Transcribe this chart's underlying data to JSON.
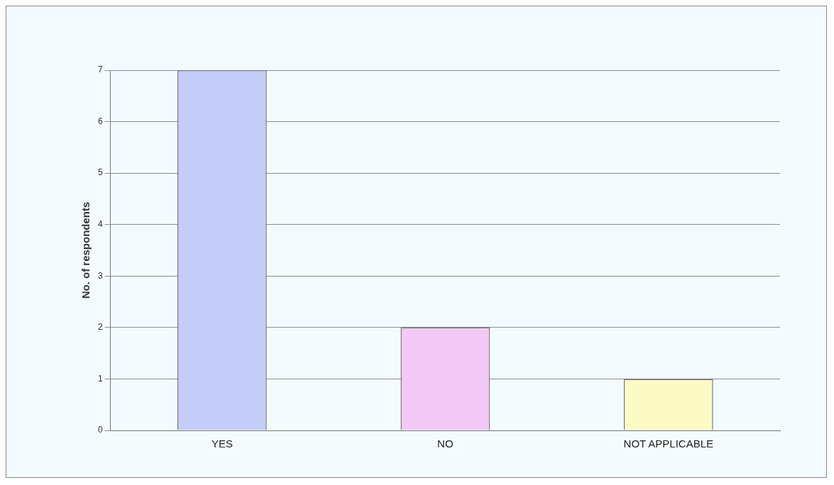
{
  "chart_data": {
    "type": "bar",
    "ylabel": "No. of respondents",
    "categories": [
      "YES",
      "NO",
      "NOT APPLICABLE"
    ],
    "values": [
      7,
      2,
      1
    ],
    "colors": [
      "#c4ccf8",
      "#f4c8f4",
      "#fdfbc4"
    ],
    "ylim": [
      0,
      7
    ],
    "yticks": [
      0,
      1,
      2,
      3,
      4,
      5,
      6,
      7
    ],
    "grid": "y",
    "legend": false
  }
}
